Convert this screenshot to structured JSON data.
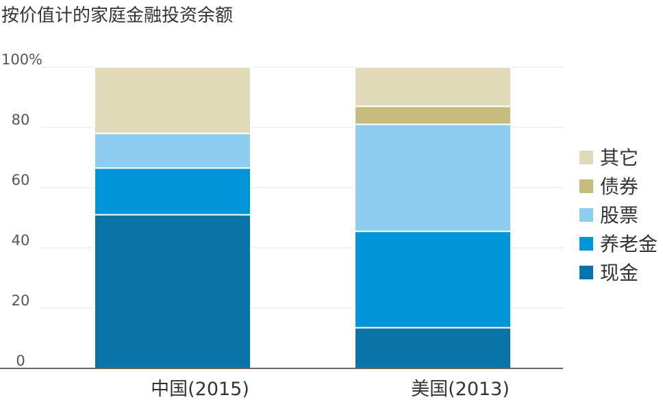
{
  "chart_data": {
    "type": "bar",
    "stacked": true,
    "title": "按价值计的家庭金融投资余额",
    "categories": [
      "中国(2015)",
      "美国(2013)"
    ],
    "series": [
      {
        "name": "现金",
        "color": "#0a74a8",
        "values": [
          51,
          13.5
        ]
      },
      {
        "name": "养老金",
        "color": "#0295d8",
        "values": [
          15.5,
          32
        ]
      },
      {
        "name": "股票",
        "color": "#8ccdf0",
        "values": [
          11.5,
          35.5
        ]
      },
      {
        "name": "债券",
        "color": "#c7bc7e",
        "values": [
          0,
          6
        ]
      },
      {
        "name": "其它",
        "color": "#e0dab8",
        "values": [
          22,
          13
        ]
      }
    ],
    "y_ticks": [
      "0",
      "20",
      "40",
      "60",
      "80",
      "100%"
    ],
    "ylim": [
      0,
      100
    ],
    "grid": true,
    "legend_position": "right"
  }
}
